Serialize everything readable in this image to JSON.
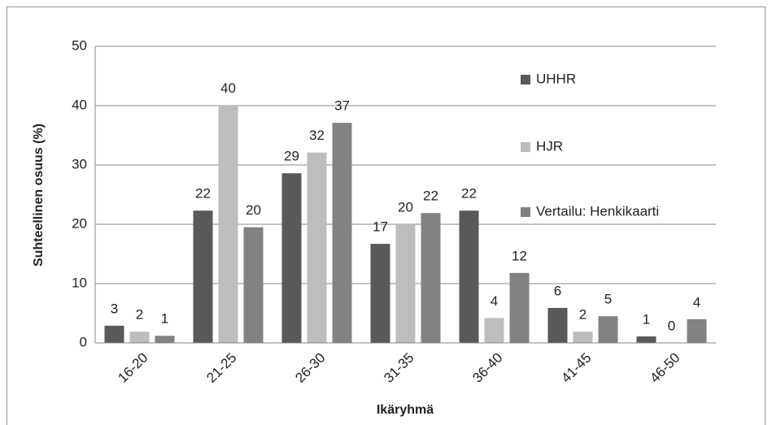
{
  "chart_data": {
    "type": "bar",
    "x_label": "Ikäryhmä",
    "y_label": "Suhteellinen osuus (%)",
    "categories": [
      "16-20",
      "21-25",
      "26-30",
      "31-35",
      "36-40",
      "41-45",
      "46-50"
    ],
    "series": [
      {
        "name": "UHHR",
        "color": "#595959",
        "values": [
          2.9,
          22.3,
          28.6,
          16.7,
          22.3,
          5.9,
          1.1
        ],
        "value_labels": [
          "3",
          "22",
          "29",
          "17",
          "22",
          "6",
          "1"
        ]
      },
      {
        "name": "HJR",
        "color": "#bdbdbd",
        "values": [
          1.9,
          40.1,
          32.1,
          20.0,
          4.2,
          1.9,
          0
        ],
        "value_labels": [
          "2",
          "40",
          "32",
          "20",
          "4",
          "2",
          "0"
        ]
      },
      {
        "name": "Vertailu: Henkikaarti",
        "color": "#828282",
        "values": [
          1.2,
          19.5,
          37.1,
          21.9,
          11.8,
          4.5,
          4.0
        ],
        "value_labels": [
          "1",
          "20",
          "37",
          "22",
          "12",
          "5",
          "4"
        ]
      }
    ],
    "ylim": [
      0,
      50
    ],
    "yticks": [
      0,
      10,
      20,
      30,
      40,
      50
    ],
    "grid": true,
    "legend": "right"
  }
}
